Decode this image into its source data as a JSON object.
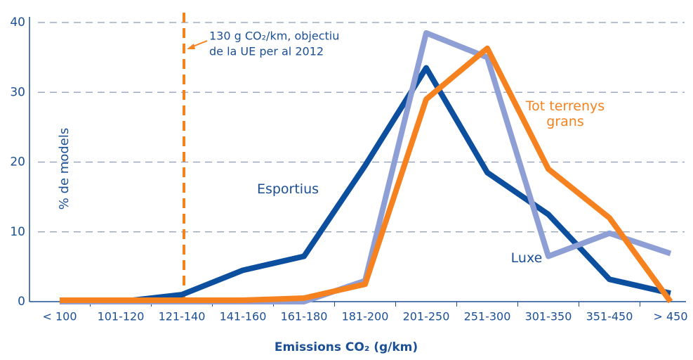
{
  "chart_data": {
    "type": "line",
    "x_label": "Emissions CO₂ (g/km)",
    "y_label": "% de models",
    "annotation": [
      "130 g CO₂/km, objectiu",
      "de la UE per al 2012"
    ],
    "categories": [
      "< 100",
      "101-120",
      "121-140",
      "141-160",
      "161-180",
      "181-200",
      "201-250",
      "251-300",
      "301-350",
      "351-450",
      "> 450"
    ],
    "series": [
      {
        "name": "Esportius",
        "color": "#0b4f9e",
        "values": [
          0,
          0,
          1,
          4.5,
          6.5,
          19.5,
          33.5,
          18.5,
          12.5,
          3.2,
          1.2
        ]
      },
      {
        "name": "Luxe",
        "color": "#8e9fd5",
        "values": [
          0,
          0,
          0,
          0,
          0,
          3,
          38.5,
          35,
          6.5,
          9.8,
          6.9
        ]
      },
      {
        "name": "Tot terrenys grans",
        "color": "#f5821f",
        "values": [
          0.2,
          0.2,
          0.2,
          0.2,
          0.5,
          2.5,
          29,
          36.3,
          19,
          12,
          0
        ]
      }
    ],
    "ylim": [
      0,
      40
    ],
    "yticks": [
      0,
      10,
      20,
      30,
      40
    ],
    "grid": true
  }
}
